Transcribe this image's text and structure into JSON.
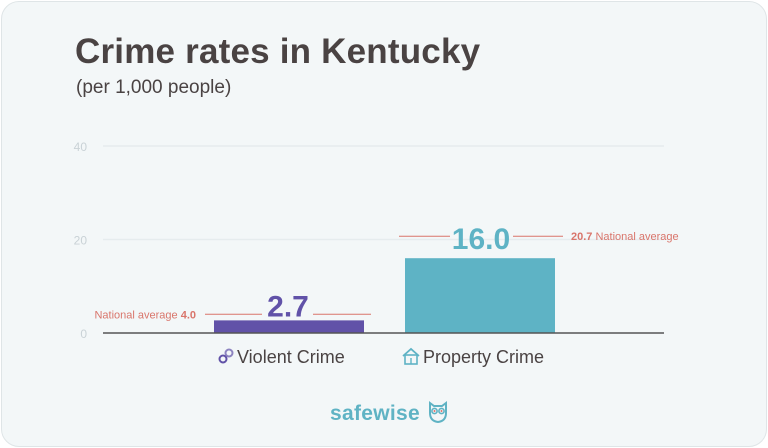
{
  "header": {
    "title": "Crime rates in Kentucky",
    "subtitle": "(per 1,000 people)"
  },
  "brand": {
    "name": "safewise",
    "icon": "owl-icon"
  },
  "colors": {
    "violent": "#6152a8",
    "property": "#5eb3c5",
    "national": "#d9756b",
    "axis_text": "#c9d2d6",
    "label_text": "#4a4343"
  },
  "chart_data": {
    "type": "bar",
    "title": "Crime rates in Kentucky",
    "subtitle": "(per 1,000 people)",
    "xlabel": "",
    "ylabel": "",
    "ylim": [
      0,
      40
    ],
    "yticks": [
      0,
      20,
      40
    ],
    "grid": true,
    "categories": [
      "Violent Crime",
      "Property Crime"
    ],
    "category_icons": [
      "handcuffs-icon",
      "house-icon"
    ],
    "values": [
      2.7,
      16.0
    ],
    "value_labels": [
      "2.7",
      "16.0"
    ],
    "national_average": {
      "values": [
        4.0,
        20.7
      ],
      "labels": [
        {
          "text": "National average ",
          "value": "4.0",
          "position": "left"
        },
        {
          "value": "20.7",
          "text": " National average",
          "position": "right"
        }
      ]
    }
  }
}
